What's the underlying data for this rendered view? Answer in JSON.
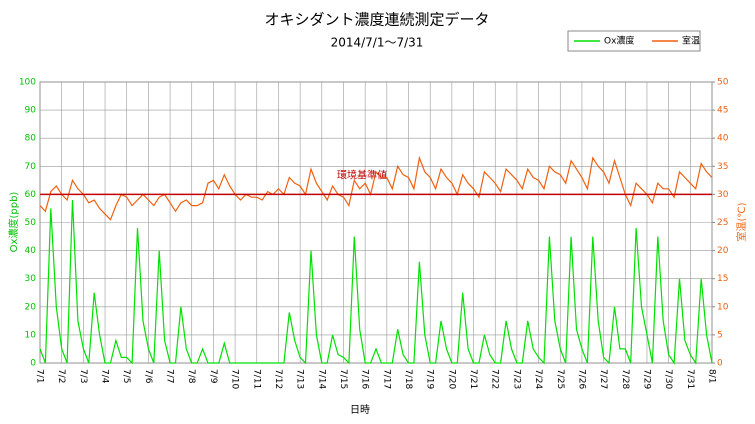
{
  "chart_data": {
    "type": "line",
    "title": "オキシダント濃度連続測定データ",
    "subtitle": "2014/7/1～7/31",
    "xlabel": "日時",
    "ylabel": "Ox濃度(ppb)",
    "y2label": "室温(℃)",
    "xlim": [
      0,
      31
    ],
    "xticks": [
      {
        "value": 0,
        "label": "7/1"
      },
      {
        "value": 1,
        "label": "7/2"
      },
      {
        "value": 2,
        "label": "7/3"
      },
      {
        "value": 3,
        "label": "7/4"
      },
      {
        "value": 4,
        "label": "7/5"
      },
      {
        "value": 5,
        "label": "7/6"
      },
      {
        "value": 6,
        "label": "7/7"
      },
      {
        "value": 7,
        "label": "7/8"
      },
      {
        "value": 8,
        "label": "7/9"
      },
      {
        "value": 9,
        "label": "7/10"
      },
      {
        "value": 10,
        "label": "7/11"
      },
      {
        "value": 11,
        "label": "7/12"
      },
      {
        "value": 12,
        "label": "7/13"
      },
      {
        "value": 13,
        "label": "7/14"
      },
      {
        "value": 14,
        "label": "7/15"
      },
      {
        "value": 15,
        "label": "7/16"
      },
      {
        "value": 16,
        "label": "7/17"
      },
      {
        "value": 17,
        "label": "7/18"
      },
      {
        "value": 18,
        "label": "7/19"
      },
      {
        "value": 19,
        "label": "7/20"
      },
      {
        "value": 20,
        "label": "7/21"
      },
      {
        "value": 21,
        "label": "7/22"
      },
      {
        "value": 22,
        "label": "7/23"
      },
      {
        "value": 23,
        "label": "7/24"
      },
      {
        "value": 24,
        "label": "7/25"
      },
      {
        "value": 25,
        "label": "7/26"
      },
      {
        "value": 26,
        "label": "7/27"
      },
      {
        "value": 27,
        "label": "7/28"
      },
      {
        "value": 28,
        "label": "7/29"
      },
      {
        "value": 29,
        "label": "7/30"
      },
      {
        "value": 30,
        "label": "7/31"
      },
      {
        "value": 31,
        "label": "8/1"
      }
    ],
    "ylim": [
      0,
      100
    ],
    "yticks": [
      0,
      10,
      20,
      30,
      40,
      50,
      60,
      70,
      80,
      90,
      100
    ],
    "y2lim": [
      0,
      50
    ],
    "y2ticks": [
      0,
      5,
      10,
      15,
      20,
      25,
      30,
      35,
      40,
      45,
      50
    ],
    "grid": true,
    "legend": "top-right",
    "reference": {
      "value": 60,
      "label": "環境基準値",
      "color": "#c00000"
    },
    "x": [
      0,
      0.25,
      0.5,
      0.75,
      1,
      1.25,
      1.5,
      1.75,
      2,
      2.25,
      2.5,
      2.75,
      3,
      3.25,
      3.5,
      3.75,
      4,
      4.25,
      4.5,
      4.75,
      5,
      5.25,
      5.5,
      5.75,
      6,
      6.25,
      6.5,
      6.75,
      7,
      7.25,
      7.5,
      7.75,
      8,
      8.25,
      8.5,
      8.75,
      9,
      9.25,
      9.5,
      9.75,
      10,
      10.25,
      10.5,
      10.75,
      11,
      11.25,
      11.5,
      11.75,
      12,
      12.25,
      12.5,
      12.75,
      13,
      13.25,
      13.5,
      13.75,
      14,
      14.25,
      14.5,
      14.75,
      15,
      15.25,
      15.5,
      15.75,
      16,
      16.25,
      16.5,
      16.75,
      17,
      17.25,
      17.5,
      17.75,
      18,
      18.25,
      18.5,
      18.75,
      19,
      19.25,
      19.5,
      19.75,
      20,
      20.25,
      20.5,
      20.75,
      21,
      21.25,
      21.5,
      21.75,
      22,
      22.25,
      22.5,
      22.75,
      23,
      23.25,
      23.5,
      23.75,
      24,
      24.25,
      24.5,
      24.75,
      25,
      25.25,
      25.5,
      25.75,
      26,
      26.25,
      26.5,
      26.75,
      27,
      27.25,
      27.5,
      27.75,
      28,
      28.25,
      28.5,
      28.75,
      29,
      29.25,
      29.5,
      29.75,
      30,
      30.25,
      30.5,
      30.75,
      31
    ],
    "series": [
      {
        "name": "Ox濃度",
        "color": "#00e000",
        "values": [
          5,
          0,
          55,
          20,
          5,
          0,
          58,
          15,
          5,
          0,
          25,
          10,
          0,
          0,
          8,
          2,
          2,
          0,
          48,
          15,
          5,
          0,
          40,
          8,
          0,
          0,
          20,
          5,
          0,
          0,
          5,
          0,
          0,
          0,
          7,
          0,
          0,
          0,
          0,
          0,
          0,
          0,
          0,
          0,
          0,
          0,
          18,
          8,
          2,
          0,
          40,
          10,
          0,
          0,
          10,
          3,
          2,
          0,
          45,
          12,
          0,
          0,
          5,
          0,
          0,
          0,
          12,
          3,
          0,
          0,
          36,
          10,
          0,
          0,
          15,
          5,
          0,
          0,
          25,
          5,
          0,
          0,
          10,
          3,
          0,
          0,
          15,
          5,
          0,
          0,
          15,
          5,
          2,
          0,
          45,
          15,
          5,
          0,
          45,
          12,
          5,
          0,
          45,
          15,
          2,
          0,
          20,
          5,
          5,
          0,
          48,
          20,
          10,
          0,
          45,
          15,
          3,
          0,
          30,
          8,
          3,
          0,
          30,
          10,
          0
        ]
      },
      {
        "name": "室温",
        "color": "#f06010",
        "axis": "y2",
        "values": [
          28,
          27,
          30.5,
          31.5,
          30,
          29,
          32.5,
          31,
          30,
          28.5,
          29,
          27.5,
          26.5,
          25.5,
          28,
          30,
          29.5,
          28,
          29,
          30,
          29,
          28,
          29.5,
          30,
          28.5,
          27,
          28.5,
          29,
          28,
          28,
          28.5,
          32,
          32.5,
          31,
          33.5,
          31.5,
          30,
          29,
          30,
          29.5,
          29.5,
          29,
          30.5,
          30,
          31,
          30,
          33,
          32,
          31.5,
          30,
          34.5,
          32,
          30.5,
          29,
          31.5,
          30,
          29.5,
          28,
          32.5,
          31,
          32,
          30,
          34,
          33,
          33,
          31,
          35,
          33.5,
          33,
          31,
          36.5,
          34,
          33,
          31,
          34.5,
          33,
          32,
          30,
          33.5,
          32,
          31,
          29.5,
          34,
          33,
          32,
          30.5,
          34.5,
          33.5,
          32.5,
          31,
          34.5,
          33,
          32.5,
          31,
          35,
          34,
          33.5,
          32,
          36,
          34.5,
          33,
          31,
          36.5,
          35,
          34,
          32,
          36,
          33,
          30,
          28,
          32,
          31,
          30,
          28.5,
          32,
          31,
          31,
          29.5,
          34,
          33,
          32,
          31,
          35.5,
          34,
          33
        ]
      }
    ]
  }
}
